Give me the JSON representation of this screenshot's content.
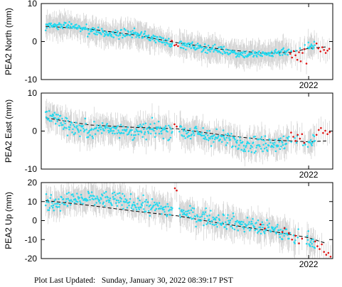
{
  "footer": {
    "label": "Plot Last Updated:",
    "value": "Sunday, January 30, 2022 08:39:17 PST"
  },
  "colors": {
    "point": "#22d8ee",
    "recent_point": "#dd1111",
    "errorbar": "#c8c8c8",
    "trend": "#000000"
  },
  "chart_data": [
    {
      "type": "scatter",
      "ylabel": "PEA2 North (mm)",
      "xlim": [
        2015.9,
        2022.55
      ],
      "ylim": [
        -10,
        10
      ],
      "yticks": [
        10,
        0,
        -10
      ],
      "xticks": [
        {
          "value": 2022.0,
          "label": "2022"
        }
      ],
      "trend": [
        [
          2016.0,
          4.0
        ],
        [
          2017.0,
          3.3
        ],
        [
          2018.0,
          1.8
        ],
        [
          2019.0,
          -0.3
        ],
        [
          2020.0,
          -2.0
        ],
        [
          2021.0,
          -3.1
        ],
        [
          2021.6,
          -2.8
        ],
        [
          2022.0,
          -1.8
        ],
        [
          2022.4,
          -1.4
        ]
      ],
      "cyan_profile": [
        [
          2016.0,
          4.0
        ],
        [
          2016.5,
          4.2
        ],
        [
          2017.0,
          3.0
        ],
        [
          2017.5,
          1.8
        ],
        [
          2018.0,
          2.2
        ],
        [
          2018.5,
          0.8
        ],
        [
          2019.0,
          -0.8
        ],
        [
          2019.5,
          -1.5
        ],
        [
          2020.0,
          -2.2
        ],
        [
          2020.5,
          -3.3
        ],
        [
          2021.0,
          -3.4
        ],
        [
          2021.5,
          -2.4
        ],
        [
          2022.0,
          -1.6
        ],
        [
          2022.3,
          -0.3
        ]
      ],
      "red_points": [
        [
          2018.88,
          0.2
        ],
        [
          2018.94,
          -1.0
        ],
        [
          2018.98,
          -0.8
        ],
        [
          2019.02,
          -1.2
        ],
        [
          2021.58,
          -3.2
        ],
        [
          2021.62,
          -4.2
        ],
        [
          2021.66,
          -2.5
        ],
        [
          2021.7,
          -3.6
        ],
        [
          2021.74,
          -4.8
        ],
        [
          2021.78,
          -2.8
        ],
        [
          2021.82,
          -5.2
        ],
        [
          2021.86,
          -3.0
        ],
        [
          2021.9,
          -2.0
        ],
        [
          2021.95,
          -5.8
        ],
        [
          2022.18,
          -0.5
        ],
        [
          2022.22,
          -1.8
        ],
        [
          2022.27,
          -2.6
        ],
        [
          2022.31,
          -1.5
        ],
        [
          2022.35,
          -2.2
        ],
        [
          2022.39,
          -3.0
        ],
        [
          2022.43,
          -2.4
        ],
        [
          2022.47,
          -1.9
        ]
      ],
      "noise": 1.1,
      "err": 2.8
    },
    {
      "type": "scatter",
      "ylabel": "PEA2 East (mm)",
      "xlim": [
        2015.9,
        2022.55
      ],
      "ylim": [
        -10,
        10
      ],
      "yticks": [
        10,
        0,
        -10
      ],
      "xticks": [
        {
          "value": 2022.0,
          "label": "2022"
        }
      ],
      "trend": [
        [
          2016.0,
          3.5
        ],
        [
          2017.0,
          1.6
        ],
        [
          2018.0,
          1.0
        ],
        [
          2019.0,
          0.6
        ],
        [
          2020.0,
          -1.0
        ],
        [
          2021.0,
          -2.3
        ],
        [
          2021.6,
          -2.6
        ],
        [
          2022.0,
          -2.8
        ],
        [
          2022.4,
          -2.6
        ]
      ],
      "cyan_profile": [
        [
          2016.0,
          4.5
        ],
        [
          2016.3,
          3.0
        ],
        [
          2016.6,
          1.0
        ],
        [
          2017.0,
          0.3
        ],
        [
          2017.5,
          1.0
        ],
        [
          2018.0,
          -0.5
        ],
        [
          2018.5,
          0.5
        ],
        [
          2019.0,
          0.2
        ],
        [
          2019.5,
          -0.8
        ],
        [
          2020.0,
          -2.0
        ],
        [
          2020.5,
          -3.0
        ],
        [
          2021.0,
          -3.5
        ],
        [
          2021.5,
          -2.8
        ],
        [
          2022.0,
          -3.2
        ],
        [
          2022.3,
          -2.0
        ]
      ],
      "red_points": [
        [
          2018.94,
          1.8
        ],
        [
          2018.99,
          1.2
        ],
        [
          2021.6,
          -0.4
        ],
        [
          2021.65,
          -1.5
        ],
        [
          2021.7,
          -2.6
        ],
        [
          2021.75,
          -1.0
        ],
        [
          2021.8,
          -2.0
        ],
        [
          2021.85,
          -0.8
        ],
        [
          2021.9,
          -3.1
        ],
        [
          2022.18,
          -1.0
        ],
        [
          2022.23,
          0.3
        ],
        [
          2022.28,
          0.8
        ],
        [
          2022.33,
          -0.5
        ],
        [
          2022.38,
          0.1
        ],
        [
          2022.43,
          -0.8
        ],
        [
          2022.48,
          -0.3
        ]
      ],
      "noise": 2.2,
      "err": 3.0
    },
    {
      "type": "scatter",
      "ylabel": "PEA2 Up (mm)",
      "xlim": [
        2015.9,
        2022.55
      ],
      "ylim": [
        -20,
        20
      ],
      "yticks": [
        20,
        10,
        0,
        -10,
        -20
      ],
      "xticks": [
        {
          "value": 2022.0,
          "label": "2022"
        }
      ],
      "trend": [
        [
          2016.0,
          10.5
        ],
        [
          2017.0,
          8.0
        ],
        [
          2018.0,
          5.0
        ],
        [
          2019.0,
          2.5
        ],
        [
          2020.0,
          -1.5
        ],
        [
          2021.0,
          -5.0
        ],
        [
          2022.0,
          -9.0
        ],
        [
          2022.4,
          -12.0
        ]
      ],
      "cyan_profile": [
        [
          2016.0,
          9.0
        ],
        [
          2016.5,
          10.5
        ],
        [
          2017.0,
          11.5
        ],
        [
          2017.5,
          11.0
        ],
        [
          2018.0,
          9.0
        ],
        [
          2018.5,
          7.0
        ],
        [
          2019.0,
          5.0
        ],
        [
          2019.5,
          2.0
        ],
        [
          2020.0,
          0.5
        ],
        [
          2020.5,
          -2.0
        ],
        [
          2021.0,
          -4.0
        ],
        [
          2021.5,
          -7.0
        ],
        [
          2022.0,
          -10.0
        ],
        [
          2022.3,
          -13.0
        ]
      ],
      "red_points": [
        [
          2018.95,
          17.0
        ],
        [
          2018.99,
          15.8
        ],
        [
          2020.9,
          -2.0
        ],
        [
          2021.0,
          -4.2
        ],
        [
          2021.4,
          -6.0
        ],
        [
          2021.45,
          -4.0
        ],
        [
          2021.55,
          -6.5
        ],
        [
          2021.62,
          -10.0
        ],
        [
          2021.7,
          -8.0
        ],
        [
          2021.78,
          -12.0
        ],
        [
          2021.85,
          -9.5
        ],
        [
          2022.15,
          -11.0
        ],
        [
          2022.2,
          -13.5
        ],
        [
          2022.25,
          -15.0
        ],
        [
          2022.3,
          -12.5
        ],
        [
          2022.35,
          -16.5
        ],
        [
          2022.4,
          -18.0
        ],
        [
          2022.45,
          -17.0
        ],
        [
          2022.5,
          -19.0
        ]
      ],
      "noise": 4.2,
      "err": 6.0
    }
  ]
}
